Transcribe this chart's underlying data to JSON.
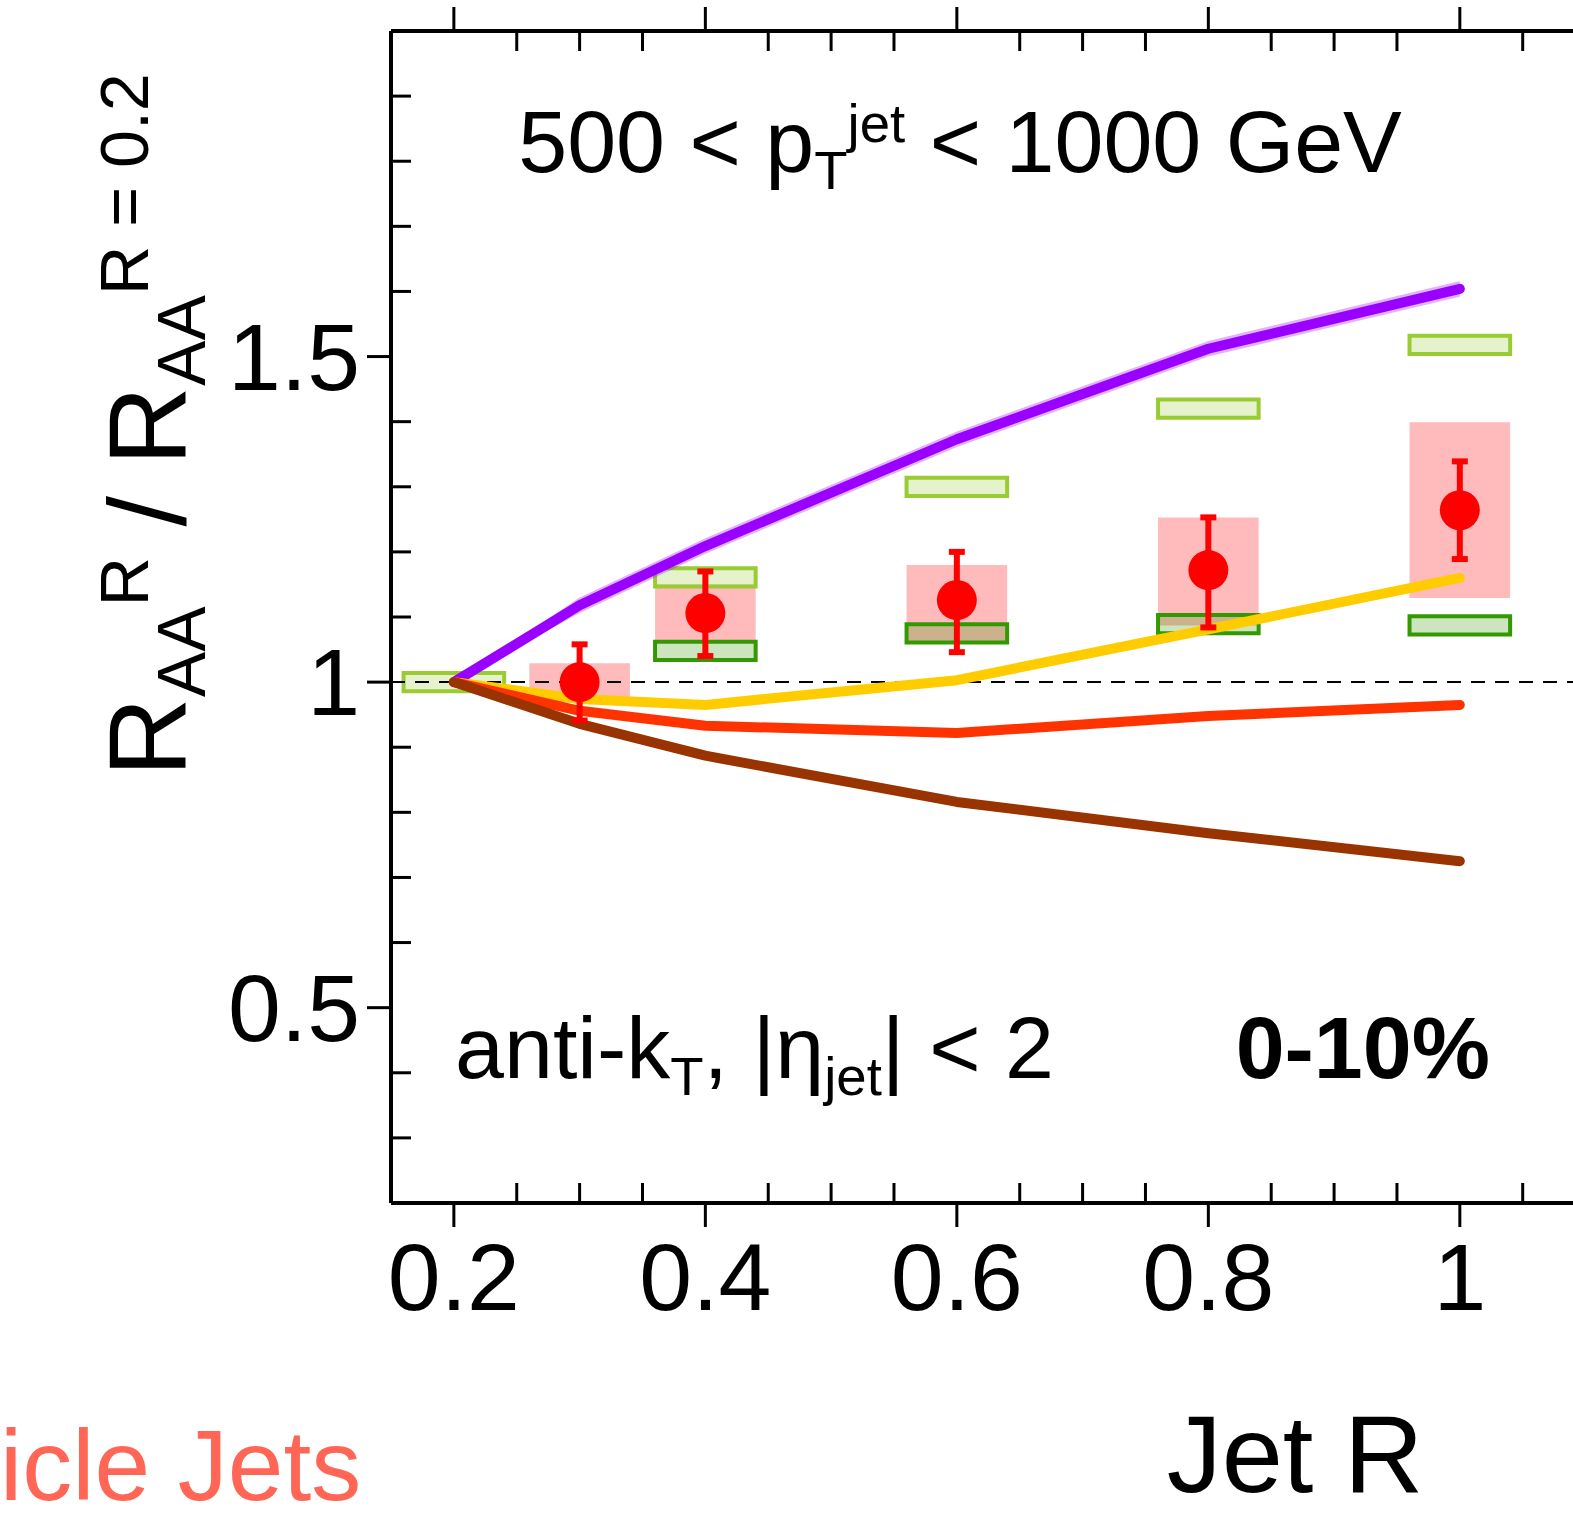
{
  "chart_data": {
    "type": "line",
    "xlabel": "Jet R",
    "ylabel": "R$_{AA}$$^{R}$ / R$_{AA}$$^{R = 0.2}$",
    "xlim": [
      0.15,
      1.09
    ],
    "ylim": [
      0.2,
      2.0
    ],
    "xticks": [
      0.2,
      0.4,
      0.6,
      0.8,
      1
    ],
    "yticks": [
      0.5,
      1,
      1.5
    ],
    "series": [
      {
        "type": "bar",
        "color": "#ffbbbb",
        "x": [
          0.3,
          0.4,
          0.6,
          0.8,
          1.0
        ],
        "base": [
          0.969,
          1.06,
          1.06,
          1.087,
          1.129
        ],
        "values": [
          0.06,
          0.09,
          0.12,
          0.166,
          0.27
        ]
      },
      {
        "type": "bar",
        "color": "#99cc33",
        "x": [
          0.2,
          0.4,
          0.6,
          0.8,
          1.0
        ],
        "base": [
          0.986,
          1.147,
          1.286,
          1.406,
          1.504
        ],
        "values": [
          0.028,
          0.028,
          0.028,
          0.028,
          0.028
        ]
      },
      {
        "type": "bar",
        "color": "#339900",
        "x": [
          0.4,
          0.6,
          0.8,
          1.0
        ],
        "base": [
          1.034,
          1.061,
          1.075,
          1.073
        ],
        "values": [
          0.028,
          0.028,
          0.028,
          0.028
        ]
      },
      {
        "type": "line",
        "color": "#9900ff",
        "x": [
          0.2,
          0.3,
          0.4,
          0.6,
          0.8,
          1.0
        ],
        "values": [
          1.0,
          1.118,
          1.209,
          1.373,
          1.512,
          1.604
        ],
        "lower": [
          1.0,
          1.106,
          1.197,
          1.361,
          1.5,
          1.592
        ],
        "upper": [
          1.0,
          1.13,
          1.221,
          1.385,
          1.524,
          1.616
        ]
      },
      {
        "color": "#ffcc00",
        "x": [
          0.2,
          0.3,
          0.4,
          0.6,
          0.8,
          1.0
        ],
        "values": [
          1.0,
          0.974,
          0.965,
          1.003,
          1.081,
          1.16
        ]
      },
      {
        "type": "line",
        "color": "#ff3300",
        "x": [
          0.2,
          0.3,
          0.4,
          0.6,
          0.8,
          1.0
        ],
        "values": [
          1.0,
          0.956,
          0.933,
          0.922,
          0.948,
          0.965
        ]
      },
      {
        "type": "line",
        "color": "#993300",
        "x": [
          0.2,
          0.3,
          0.4,
          0.6,
          0.8,
          1.0
        ],
        "values": [
          1.0,
          0.936,
          0.887,
          0.816,
          0.768,
          0.725
        ]
      },
      {
        "type": "scatter",
        "marker": "circle",
        "color": "#ff0000",
        "x": [
          0.3,
          0.4,
          0.6,
          0.8,
          1.0
        ],
        "values": [
          1.0,
          1.106,
          1.126,
          1.172,
          1.264
        ],
        "errors": [
          [
            0.941,
            1.058
          ],
          [
            1.04,
            1.17
          ],
          [
            1.046,
            1.2
          ],
          [
            1.084,
            1.253
          ],
          [
            1.189,
            1.339
          ]
        ]
      }
    ],
    "ref_lines": [
      {
        "axis": "y",
        "value": 1,
        "color": "#000000",
        "line_style": "dashed"
      }
    ],
    "annotations": [
      "500 < p$_{T}$$^{jet}$ < 1000 GeV",
      "anti-k$_{T}$, |η$_{jet}$| < 2",
      "0-10%",
      "icle Jets"
    ]
  }
}
